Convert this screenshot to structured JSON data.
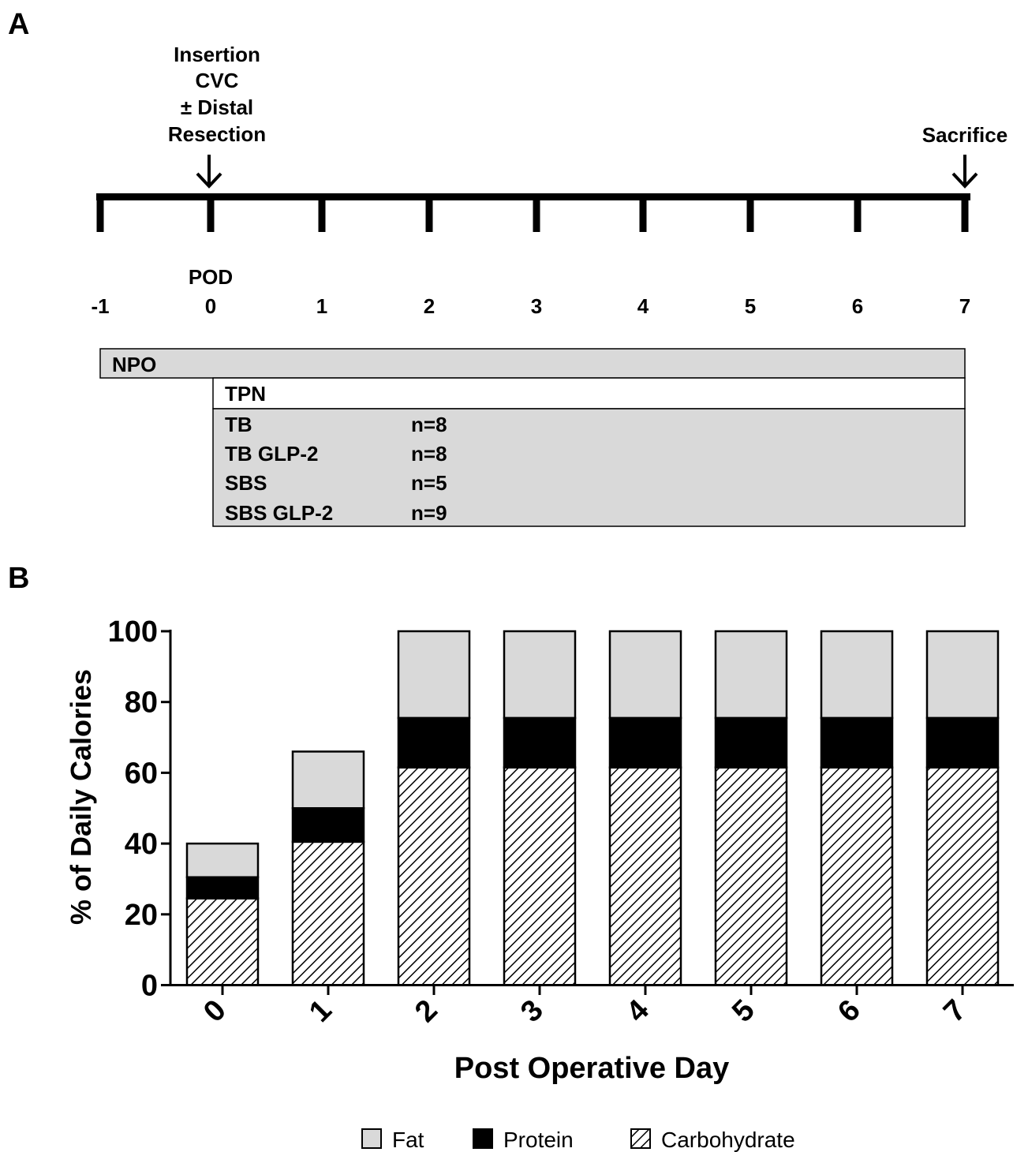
{
  "panel_a": {
    "label": "A",
    "events": {
      "insertion_lines": [
        "Insertion",
        "CVC",
        "± Distal",
        "Resection"
      ],
      "sacrifice": "Sacrifice"
    },
    "timeline": {
      "axis_title": "POD",
      "ticks": [
        "-1",
        "0",
        "1",
        "2",
        "3",
        "4",
        "5",
        "6",
        "7"
      ]
    },
    "table": {
      "npo_label": "NPO",
      "tpn_label": "TPN",
      "groups": [
        {
          "name": "TB",
          "n": "n=8"
        },
        {
          "name": "TB GLP-2",
          "n": "n=8"
        },
        {
          "name": "SBS",
          "n": "n=5"
        },
        {
          "name": "SBS GLP-2",
          "n": "n=9"
        }
      ]
    }
  },
  "panel_b": {
    "label": "B"
  },
  "chart_data": {
    "type": "bar",
    "stacked": true,
    "title": "",
    "xlabel": "Post Operative Day",
    "ylabel": "% of Daily Calories",
    "ylim": [
      0,
      100
    ],
    "yticks": [
      "0",
      "20",
      "40",
      "60",
      "80",
      "100"
    ],
    "categories": [
      "0",
      "1",
      "2",
      "3",
      "4",
      "5",
      "6",
      "7"
    ],
    "series": [
      {
        "name": "Carbohydrate",
        "values": [
          24.5,
          40.5,
          61.5,
          61.5,
          61.5,
          61.5,
          61.5,
          61.5
        ]
      },
      {
        "name": "Protein",
        "values": [
          6,
          9.5,
          14,
          14,
          14,
          14,
          14,
          14
        ]
      },
      {
        "name": "Fat",
        "values": [
          9.5,
          16,
          24.5,
          24.5,
          24.5,
          24.5,
          24.5,
          24.5
        ]
      }
    ],
    "legend_position": "bottom",
    "colors": {
      "Fat": "#d9d9d9",
      "Protein": "#000000",
      "Carbohydrate": "hatched"
    }
  }
}
